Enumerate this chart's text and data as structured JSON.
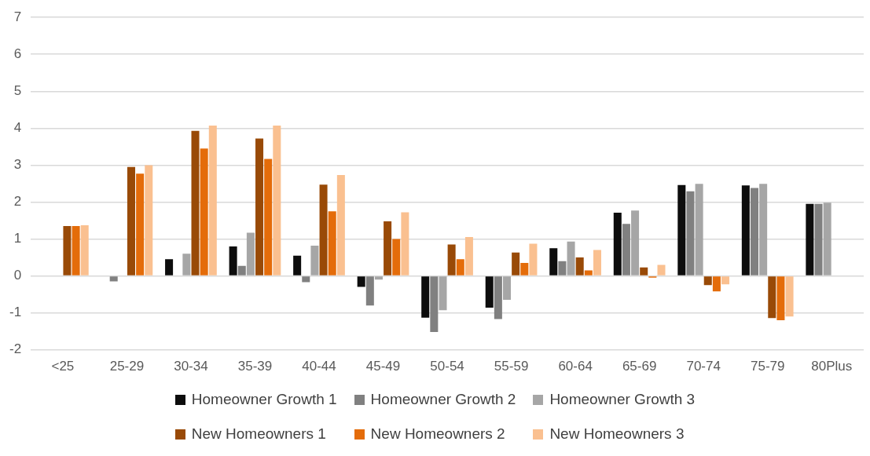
{
  "chart_data": {
    "type": "bar",
    "categories": [
      "<25",
      "25-29",
      "30-34",
      "35-39",
      "40-44",
      "45-49",
      "50-54",
      "55-59",
      "60-64",
      "65-69",
      "70-74",
      "75-79",
      "80Plus"
    ],
    "series": [
      {
        "name": "Homeowner Growth 1",
        "color": "#0d0d0d",
        "values": [
          0,
          null,
          0.45,
          0.8,
          0.55,
          -0.3,
          -1.13,
          -0.86,
          0.75,
          1.71,
          2.46,
          2.45,
          1.95
        ]
      },
      {
        "name": "Homeowner Growth 2",
        "color": "#808080",
        "values": [
          null,
          -0.15,
          0,
          0.27,
          -0.17,
          -0.8,
          -1.52,
          -1.17,
          0.4,
          1.41,
          2.29,
          2.38,
          1.95
        ]
      },
      {
        "name": "Homeowner Growth 3",
        "color": "#a6a6a6",
        "values": [
          null,
          null,
          0.6,
          1.17,
          0.82,
          -0.1,
          -0.93,
          -0.65,
          0.93,
          1.77,
          2.49,
          2.49,
          1.98
        ]
      },
      {
        "name": "New Homeowners 1",
        "color": "#994a07",
        "values": [
          1.35,
          2.95,
          3.93,
          3.72,
          2.47,
          1.48,
          0.85,
          0.63,
          0.5,
          0.23,
          -0.25,
          -1.14,
          null
        ]
      },
      {
        "name": "New Homeowners 2",
        "color": "#e46c0a",
        "values": [
          1.35,
          2.77,
          3.45,
          3.17,
          1.75,
          1.0,
          0.45,
          0.35,
          0.15,
          -0.05,
          -0.42,
          -1.2,
          null
        ]
      },
      {
        "name": "New Homeowners 3",
        "color": "#fac090",
        "values": [
          1.37,
          3.0,
          4.07,
          4.07,
          2.73,
          1.72,
          1.05,
          0.87,
          0.7,
          0.3,
          -0.23,
          -1.1,
          null
        ]
      }
    ],
    "ylim": [
      -2,
      7
    ],
    "yticks": [
      -2,
      -1,
      0,
      1,
      2,
      3,
      4,
      5,
      6,
      7
    ],
    "grid": "y",
    "legend": "bottom"
  }
}
